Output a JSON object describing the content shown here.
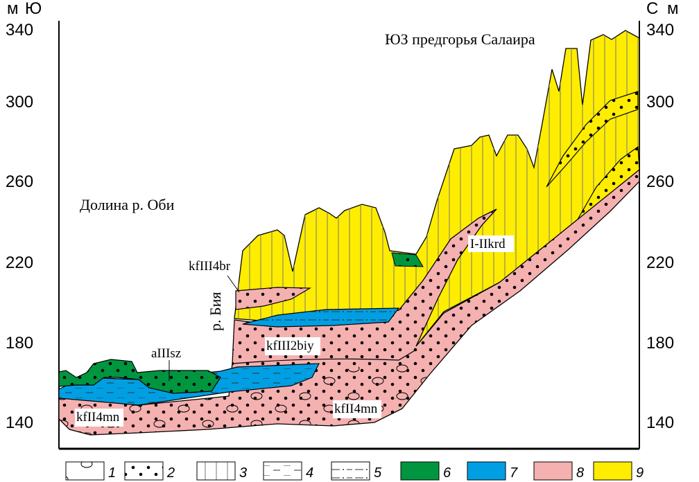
{
  "axes": {
    "left_unit": "м",
    "left_dir": "Ю",
    "right_unit": "м",
    "right_dir": "С",
    "ticks": [
      "340",
      "300",
      "260",
      "220",
      "180",
      "140"
    ]
  },
  "labels": {
    "region_right": "ЮЗ предгорья Салаира",
    "region_left": "Долина р. Оби",
    "river": "р. Бия",
    "krd": "I-IIkrd",
    "br": "kfIII4br",
    "biy": "kfIII2biy",
    "sz": "aIIIsz",
    "mn_left": "kfII4mn",
    "mn_right": "kfII4mn"
  },
  "legend": [
    {
      "num": "1",
      "icon": "pebbles-pattern"
    },
    {
      "num": "2",
      "icon": "sand-dots-pattern"
    },
    {
      "num": "3",
      "icon": "vertical-lines-pattern"
    },
    {
      "num": "4",
      "icon": "dashes-pattern"
    },
    {
      "num": "5",
      "icon": "dash-dot-pattern"
    },
    {
      "num": "6",
      "color": "#009640"
    },
    {
      "num": "7",
      "color": "#009fe3"
    },
    {
      "num": "8",
      "color": "#f5b0b0"
    },
    {
      "num": "9",
      "color": "#ffed00"
    }
  ],
  "colors": {
    "green": "#009640",
    "blue": "#009fe3",
    "pink": "#f5b0b0",
    "yellow": "#ffed00"
  }
}
